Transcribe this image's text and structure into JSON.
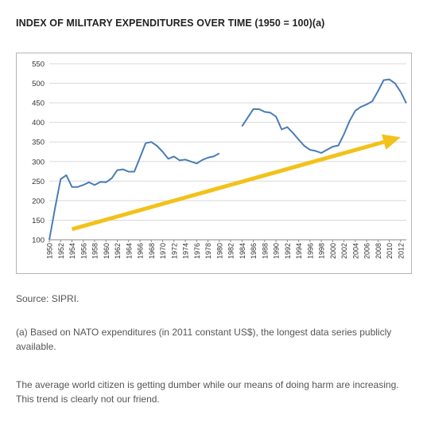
{
  "title": "INDEX OF MILITARY EXPENDITURES OVER TIME (1950 = 100)(a)",
  "source": "Source: SIPRI.",
  "note": "(a) Based on NATO expenditures (in 2011 constant US$), the longest data series publicly available.",
  "comment": "The average world citizen is getting dumber while our means of doing harm are increasing. This trend is clearly not our friend.",
  "colors": {
    "line": "#4a7db5",
    "arrow": "#f2c21b",
    "grid": "#d9d9d9",
    "axis_text": "#333333"
  },
  "chart_data": {
    "type": "line",
    "title": "INDEX OF MILITARY EXPENDITURES OVER TIME (1950 = 100)(a)",
    "xlabel": "",
    "ylabel": "",
    "ylim": [
      100,
      550
    ],
    "yticks": [
      100,
      150,
      200,
      250,
      300,
      350,
      400,
      450,
      500,
      550
    ],
    "xlim": [
      1950,
      2013
    ],
    "xticks": [
      "1950",
      "1952",
      "1954",
      "1956",
      "1958",
      "1960",
      "1962",
      "1964",
      "1966",
      "1968",
      "1970",
      "1972",
      "1974",
      "1976",
      "1978",
      "1980",
      "1982",
      "1984",
      "1986",
      "1988",
      "1990",
      "1992",
      "1994",
      "1996",
      "1998",
      "2000",
      "2002",
      "2004",
      "2006",
      "2008",
      "2010",
      "2012"
    ],
    "grid": "horizontal",
    "series": [
      {
        "segment": 1,
        "points": [
          [
            1950,
            100
          ],
          [
            1951,
            180
          ],
          [
            1952,
            255
          ],
          [
            1953,
            265
          ],
          [
            1954,
            235
          ],
          [
            1955,
            235
          ],
          [
            1956,
            240
          ],
          [
            1957,
            247
          ],
          [
            1958,
            240
          ],
          [
            1959,
            248
          ],
          [
            1960,
            247
          ],
          [
            1961,
            257
          ],
          [
            1962,
            278
          ],
          [
            1963,
            280
          ],
          [
            1964,
            274
          ],
          [
            1965,
            274
          ],
          [
            1966,
            310
          ],
          [
            1967,
            347
          ],
          [
            1968,
            350
          ],
          [
            1969,
            340
          ],
          [
            1970,
            325
          ],
          [
            1971,
            307
          ],
          [
            1972,
            313
          ],
          [
            1973,
            303
          ],
          [
            1974,
            305
          ],
          [
            1975,
            300
          ],
          [
            1976,
            295
          ],
          [
            1977,
            304
          ],
          [
            1978,
            310
          ],
          [
            1979,
            313
          ],
          [
            1980,
            321
          ]
        ]
      },
      {
        "segment": 2,
        "points": [
          [
            1984,
            390
          ],
          [
            1985,
            412
          ],
          [
            1986,
            434
          ],
          [
            1987,
            434
          ],
          [
            1988,
            427
          ],
          [
            1989,
            425
          ],
          [
            1990,
            415
          ],
          [
            1991,
            382
          ],
          [
            1992,
            388
          ],
          [
            1993,
            373
          ],
          [
            1994,
            356
          ],
          [
            1995,
            340
          ],
          [
            1996,
            330
          ],
          [
            1997,
            327
          ],
          [
            1998,
            322
          ],
          [
            1999,
            330
          ],
          [
            2000,
            338
          ],
          [
            2001,
            341
          ],
          [
            2002,
            370
          ],
          [
            2003,
            404
          ],
          [
            2004,
            430
          ],
          [
            2005,
            440
          ],
          [
            2006,
            446
          ],
          [
            2007,
            454
          ],
          [
            2008,
            480
          ],
          [
            2009,
            508
          ],
          [
            2010,
            510
          ],
          [
            2011,
            500
          ],
          [
            2012,
            478
          ],
          [
            2013,
            449
          ]
        ]
      }
    ],
    "trend_arrow": {
      "from": [
        1954,
        127
      ],
      "to": [
        2012,
        362
      ]
    }
  }
}
